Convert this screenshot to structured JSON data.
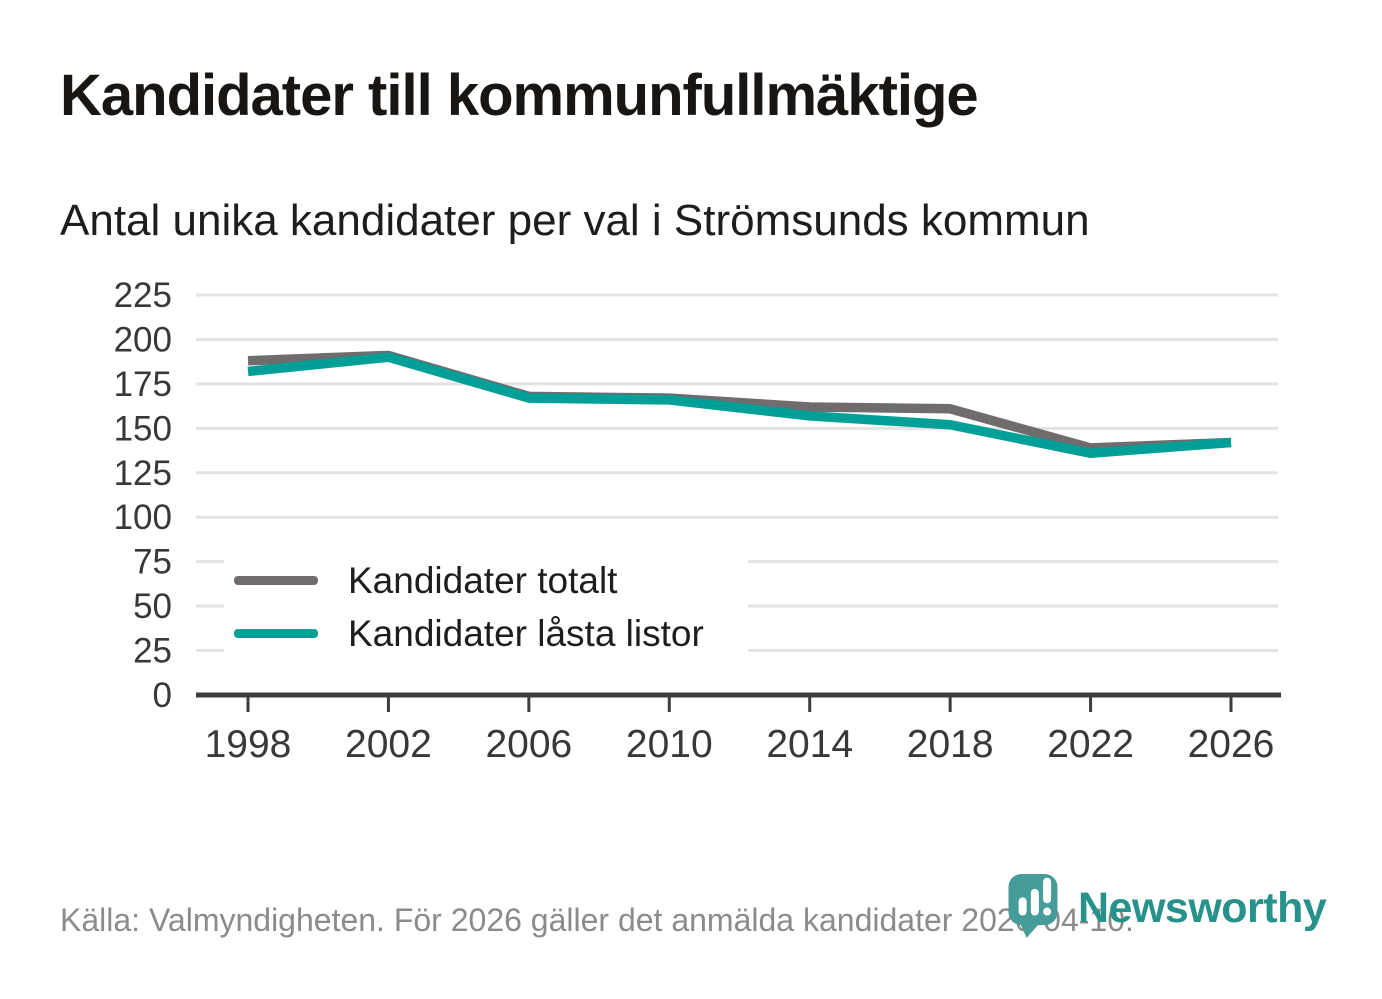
{
  "header": {
    "title": "Kandidater till kommunfullmäktige",
    "subtitle": "Antal unika kandidater per val i Strömsunds kommun"
  },
  "footer": {
    "source": "Källa: Valmyndigheten. För 2026 gäller det anmälda kandidater 2026-04-10.",
    "brand": "Newsworthy"
  },
  "colors": {
    "total_line": "#706c6d",
    "locked_line": "#00a099",
    "gridline": "#e3e3e3",
    "axis": "#3d3d3d",
    "axis_text": "#383838",
    "title_text": "#181512",
    "subtitle_text": "#1d1d1b",
    "legend_text": "#1d1d1d",
    "footer_text": "#8b8b8b",
    "brand_pin": "#469c98",
    "brand_wordmark": "#27918c",
    "background": "#ffffff"
  },
  "chart_data": {
    "type": "line",
    "title": "Kandidater till kommunfullmäktige",
    "subtitle": "Antal unika kandidater per val i Strömsunds kommun",
    "categories": [
      "1998",
      "2002",
      "2006",
      "2010",
      "2014",
      "2018",
      "2022",
      "2026"
    ],
    "series": [
      {
        "name": "Kandidater totalt",
        "color": "#706c6d",
        "values": [
          188,
          191,
          168,
          167,
          162,
          161,
          139,
          142
        ]
      },
      {
        "name": "Kandidater låsta listor",
        "color": "#00a099",
        "values": [
          182,
          190,
          167,
          166,
          157,
          152,
          136,
          142
        ]
      }
    ],
    "ylim": [
      0,
      225
    ],
    "y_ticks": [
      0,
      25,
      50,
      75,
      100,
      125,
      150,
      175,
      200,
      225
    ],
    "grid": "horizontal",
    "legend_position": "inside-left"
  }
}
